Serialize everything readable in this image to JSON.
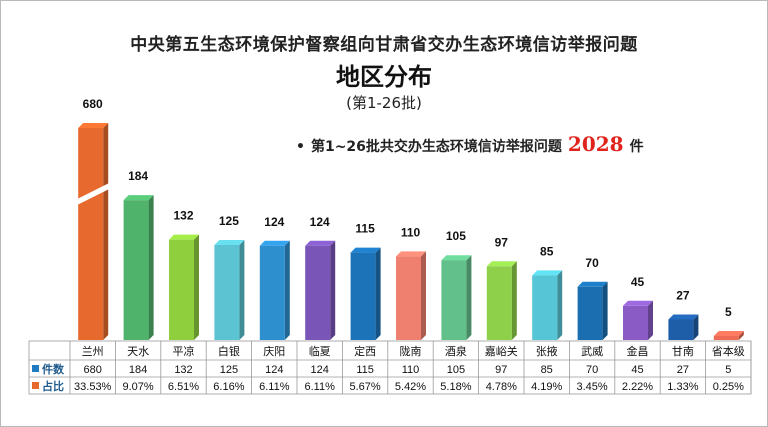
{
  "title_line1": "中央第五生态环境保护督察组向甘肃省交办生态环境信访举报问题",
  "title_line2": "地区分布",
  "title_line3": "(第1-26批)",
  "summary": {
    "bullet": "•",
    "text": "第1~26批共交办生态环境信访举报问题",
    "total": "2028",
    "unit": "件"
  },
  "table": {
    "count_label": "件数",
    "share_label": "占比"
  },
  "colors": {
    "series": [
      "#e8692e",
      "#4fb36b",
      "#8fcf3e",
      "#5bc3d1",
      "#2e8fcf",
      "#7a55b8",
      "#1d73b7",
      "#ef7f6e",
      "#62c08a",
      "#8fd04a",
      "#56c5d6",
      "#1b6fb0",
      "#8a5bc4",
      "#1e5ea8",
      "#ee6c55"
    ]
  },
  "chart_data": {
    "type": "bar",
    "categories": [
      "兰州",
      "天水",
      "平凉",
      "白银",
      "庆阳",
      "临夏",
      "定西",
      "陇南",
      "酒泉",
      "嘉峪关",
      "张掖",
      "武威",
      "金昌",
      "甘南",
      "省本级"
    ],
    "values": [
      680,
      184,
      132,
      125,
      124,
      124,
      115,
      110,
      105,
      97,
      85,
      70,
      45,
      27,
      5
    ],
    "shares": [
      "33.53%",
      "9.07%",
      "6.51%",
      "6.16%",
      "6.11%",
      "6.11%",
      "5.67%",
      "5.42%",
      "5.18%",
      "4.78%",
      "4.19%",
      "3.45%",
      "2.22%",
      "1.33%",
      "0.25%"
    ],
    "axis_break": true
  }
}
